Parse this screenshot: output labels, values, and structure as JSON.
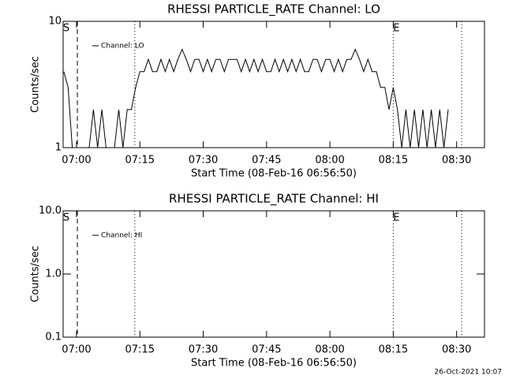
{
  "chart_data": [
    {
      "type": "line",
      "title": "RHESSI PARTICLE_RATE Channel: LO",
      "xlabel": "Start Time (08-Feb-16 06:56:50)",
      "ylabel": "Counts/sec",
      "log_y": true,
      "xlim": [
        -3.17,
        96.6
      ],
      "ylim": [
        1,
        10
      ],
      "yticks": [
        1,
        10
      ],
      "xticks": [
        {
          "value": 0,
          "label": "07:00"
        },
        {
          "value": 15,
          "label": "07:15"
        },
        {
          "value": 30,
          "label": "07:30"
        },
        {
          "value": 45,
          "label": "07:45"
        },
        {
          "value": 60,
          "label": "08:00"
        },
        {
          "value": 75,
          "label": "08:15"
        },
        {
          "value": 90,
          "label": "08:30"
        }
      ],
      "annotations": [
        {
          "text": "S",
          "x": 0.2,
          "style": "dashed"
        },
        {
          "x": 13.8,
          "style": "dotted"
        },
        {
          "text": "E",
          "x": 75,
          "style": "dotted"
        },
        {
          "x": 91.2,
          "style": "dotted"
        }
      ],
      "series": [
        {
          "name": "Channel: LO",
          "color": "#000000",
          "x": [
            -3,
            -2,
            -1,
            0,
            1,
            2,
            3,
            4,
            5,
            6,
            7,
            8,
            9,
            10,
            11,
            12,
            13,
            14,
            15,
            16,
            17,
            18,
            19,
            20,
            21,
            22,
            23,
            24,
            25,
            26,
            27,
            28,
            29,
            30,
            31,
            32,
            33,
            34,
            35,
            36,
            37,
            38,
            39,
            40,
            41,
            42,
            43,
            44,
            45,
            46,
            47,
            48,
            49,
            50,
            51,
            52,
            53,
            54,
            55,
            56,
            57,
            58,
            59,
            60,
            61,
            62,
            63,
            64,
            65,
            66,
            67,
            68,
            69,
            70,
            71,
            72,
            73,
            74,
            75,
            76,
            77,
            78,
            79,
            80,
            81,
            82,
            83,
            84,
            85,
            86,
            87,
            88
          ],
          "values": [
            4,
            3,
            1,
            1,
            1,
            1,
            1,
            2,
            1,
            2,
            1,
            1,
            1,
            2,
            1,
            2,
            2,
            3,
            4,
            4,
            5,
            4,
            4,
            5,
            4,
            5,
            4,
            5,
            6,
            5,
            4,
            5,
            5,
            4,
            5,
            4,
            5,
            5,
            4,
            5,
            5,
            5,
            4,
            5,
            4,
            5,
            4,
            5,
            4,
            4,
            5,
            4,
            5,
            4,
            5,
            4,
            5,
            4,
            4,
            5,
            5,
            4,
            5,
            5,
            4,
            5,
            4,
            5,
            5,
            6,
            5,
            4,
            5,
            4,
            4,
            3,
            3,
            2,
            3,
            2,
            1,
            2,
            1,
            2,
            1,
            2,
            1,
            2,
            1,
            2,
            1,
            2
          ]
        }
      ]
    },
    {
      "type": "line",
      "title": "RHESSI PARTICLE_RATE Channel: HI",
      "xlabel": "Start Time (08-Feb-16 06:56:50)",
      "ylabel": "Counts/sec",
      "log_y": true,
      "xlim": [
        -3.17,
        96.6
      ],
      "ylim": [
        0.1,
        10
      ],
      "yticks": [
        0.1,
        {
          "value": 1,
          "label": "1.0"
        },
        {
          "value": 10,
          "label": "10.0"
        }
      ],
      "xticks": [
        {
          "value": 0,
          "label": "07:00"
        },
        {
          "value": 15,
          "label": "07:15"
        },
        {
          "value": 30,
          "label": "07:30"
        },
        {
          "value": 45,
          "label": "07:45"
        },
        {
          "value": 60,
          "label": "08:00"
        },
        {
          "value": 75,
          "label": "08:15"
        },
        {
          "value": 90,
          "label": "08:30"
        }
      ],
      "annotations": [
        {
          "text": "S",
          "x": 0.2,
          "style": "dashed"
        },
        {
          "x": 13.8,
          "style": "dotted"
        },
        {
          "text": "E",
          "x": 75,
          "style": "dotted"
        },
        {
          "x": 91.2,
          "style": "dotted"
        }
      ],
      "series": [
        {
          "name": "Channel: HI",
          "color": "#000000",
          "x": [],
          "values": []
        }
      ]
    }
  ],
  "footer": "26-Oct-2021 10:07"
}
